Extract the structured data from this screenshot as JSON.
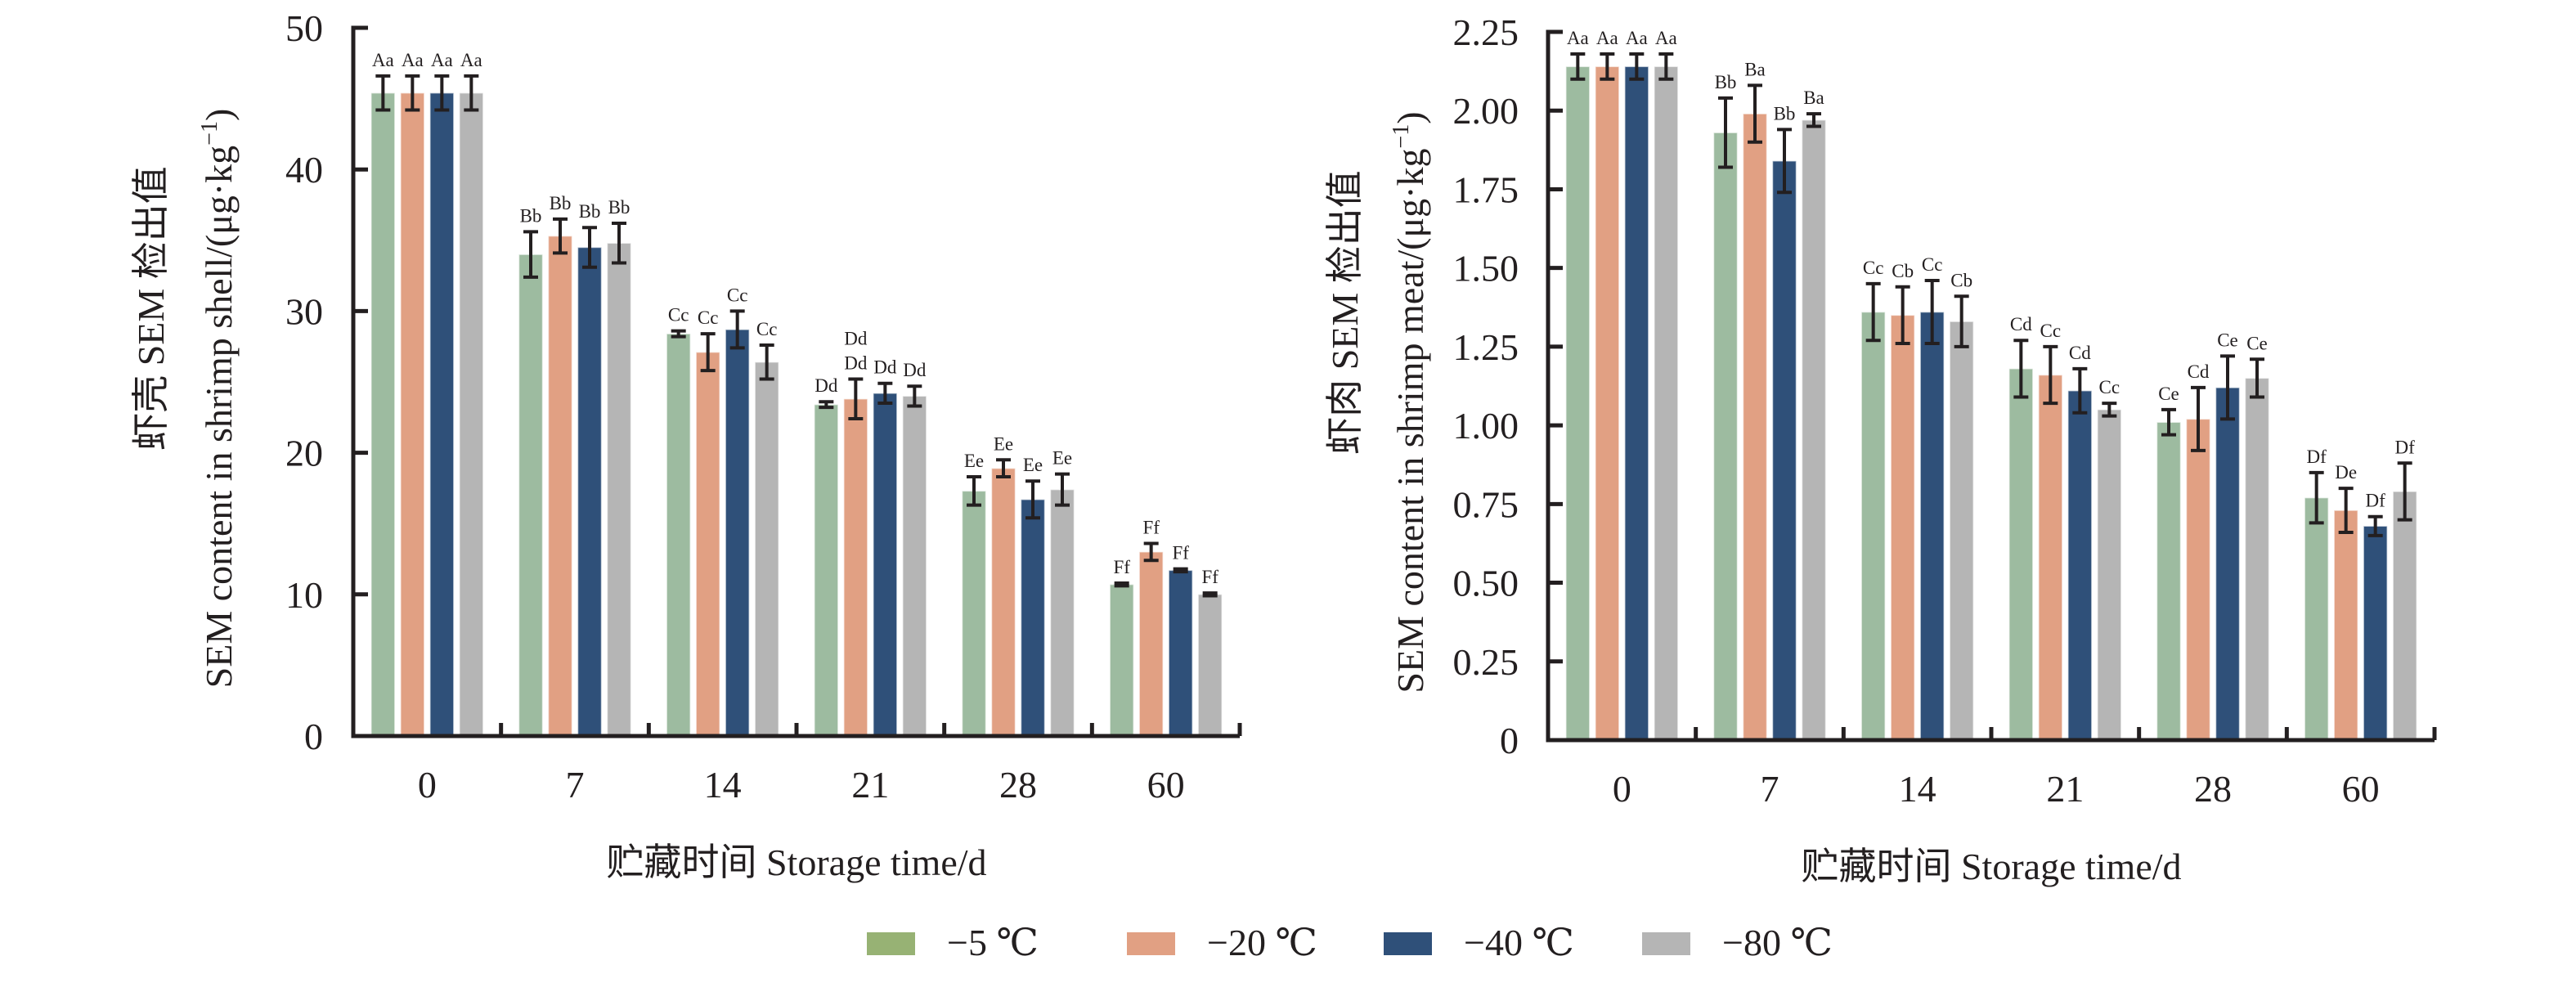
{
  "legend": {
    "items": [
      {
        "label": "−5 ℃",
        "color": "#97b274"
      },
      {
        "label": "−20 ℃",
        "color": "#e1a083"
      },
      {
        "label": "−40 ℃",
        "color": "#2f5079"
      },
      {
        "label": "−80 ℃",
        "color": "#b5b5b5"
      }
    ]
  },
  "chart_data": [
    {
      "type": "bar",
      "title": "",
      "xlabel": "贮藏时间 Storage time/d",
      "ylabel_cn": "虾壳 SEM 检出值",
      "ylabel": "SEM content in shrimp shell/(μg·kg",
      "ylabel_sup": "−1",
      "ylabel_close": ")",
      "categories": [
        "0",
        "7",
        "14",
        "21",
        "28",
        "60"
      ],
      "ylim": [
        0,
        50
      ],
      "yticks": [
        0,
        10,
        20,
        30,
        40,
        50
      ],
      "ytick_labels": [
        "0",
        "10",
        "20",
        "30",
        "40",
        "50"
      ],
      "grid": false,
      "series": [
        {
          "name": "−5 ℃",
          "color": "#9dbba0",
          "values": [
            45.4,
            34.0,
            28.4,
            23.4,
            17.3,
            10.7
          ],
          "errors": [
            1.2,
            1.6,
            0.2,
            0.2,
            1.0,
            0.1
          ],
          "labels": [
            "Aa",
            "Bb",
            "Cc",
            "Dd",
            "Ee",
            "Ff"
          ]
        },
        {
          "name": "−20 ℃",
          "color": "#e1a083",
          "values": [
            45.4,
            35.3,
            27.1,
            23.8,
            18.9,
            13.0
          ],
          "errors": [
            1.2,
            1.2,
            1.3,
            1.4,
            0.6,
            0.6
          ],
          "labels": [
            "Aa",
            "Bb",
            "Cc",
            "Dd",
            "Ee",
            "Ff"
          ]
        },
        {
          "name": "−40 ℃",
          "color": "#2f5079",
          "values": [
            45.4,
            34.5,
            28.7,
            24.2,
            16.7,
            11.7
          ],
          "errors": [
            1.2,
            1.4,
            1.3,
            0.7,
            1.3,
            0.1
          ],
          "labels": [
            "Aa",
            "Bb",
            "Cc",
            "Dd",
            "Ee",
            "Ff"
          ]
        },
        {
          "name": "−80 ℃",
          "color": "#b5b5b5",
          "values": [
            45.4,
            34.8,
            26.4,
            24.0,
            17.4,
            10.0
          ],
          "errors": [
            1.2,
            1.4,
            1.2,
            0.7,
            1.1,
            0.1
          ],
          "labels": [
            "Aa",
            "Bb",
            "Cc",
            "Dd",
            "Ee",
            "Ff"
          ]
        }
      ],
      "extra_labels": [
        {
          "category": "21",
          "series": 1,
          "text": "Dd",
          "note": "second stacked label"
        }
      ]
    },
    {
      "type": "bar",
      "title": "",
      "xlabel": "贮藏时间 Storage time/d",
      "ylabel_cn": "虾肉 SEM 检出值",
      "ylabel": "SEM content in shrimp meat/(μg·kg",
      "ylabel_sup": "−1",
      "ylabel_close": ")",
      "categories": [
        "0",
        "7",
        "14",
        "21",
        "28",
        "60"
      ],
      "ylim": [
        0,
        2.25
      ],
      "yticks": [
        0,
        0.25,
        0.5,
        0.75,
        1.0,
        1.25,
        1.5,
        1.75,
        2.0,
        2.25
      ],
      "ytick_labels": [
        "0",
        "0.25",
        "0.50",
        "0.75",
        "1.00",
        "1.25",
        "1.50",
        "1.75",
        "2.00",
        "2.25"
      ],
      "grid": false,
      "series": [
        {
          "name": "−5 ℃",
          "color": "#9dbba0",
          "values": [
            2.14,
            1.93,
            1.36,
            1.18,
            1.01,
            0.77
          ],
          "errors": [
            0.04,
            0.11,
            0.09,
            0.09,
            0.04,
            0.08
          ],
          "labels": [
            "Aa",
            "Bb",
            "Cc",
            "Cd",
            "Ce",
            "Df"
          ]
        },
        {
          "name": "−20 ℃",
          "color": "#e1a083",
          "values": [
            2.14,
            1.99,
            1.35,
            1.16,
            1.02,
            0.73
          ],
          "errors": [
            0.04,
            0.09,
            0.09,
            0.09,
            0.1,
            0.07
          ],
          "labels": [
            "Aa",
            "Ba",
            "Cb",
            "Cc",
            "Cd",
            "De"
          ]
        },
        {
          "name": "−40 ℃",
          "color": "#2f5079",
          "values": [
            2.14,
            1.84,
            1.36,
            1.11,
            1.12,
            0.68
          ],
          "errors": [
            0.04,
            0.1,
            0.1,
            0.07,
            0.1,
            0.03
          ],
          "labels": [
            "Aa",
            "Bb",
            "Cc",
            "Cd",
            "Ce",
            "Df"
          ]
        },
        {
          "name": "−80 ℃",
          "color": "#b5b5b5",
          "values": [
            2.14,
            1.97,
            1.33,
            1.05,
            1.15,
            0.79
          ],
          "errors": [
            0.04,
            0.02,
            0.08,
            0.02,
            0.06,
            0.09
          ],
          "labels": [
            "Aa",
            "Ba",
            "Cb",
            "Cc",
            "Ce",
            "Df"
          ]
        }
      ]
    }
  ]
}
